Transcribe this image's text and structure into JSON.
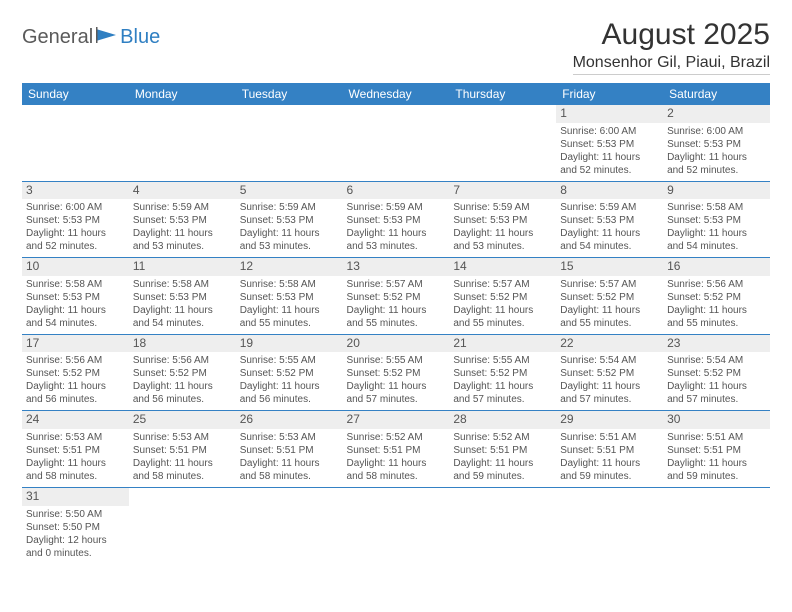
{
  "logo": {
    "text1": "General",
    "text2": "Blue"
  },
  "title": "August 2025",
  "location": "Monsenhor Gil, Piaui, Brazil",
  "colors": {
    "header_bg": "#3481c4",
    "header_fg": "#ffffff",
    "daynum_bg": "#eeeeee",
    "border": "#3481c4",
    "logo_gray": "#5a5a5a",
    "logo_blue": "#2f7fc2"
  },
  "day_headers": [
    "Sunday",
    "Monday",
    "Tuesday",
    "Wednesday",
    "Thursday",
    "Friday",
    "Saturday"
  ],
  "weeks": [
    [
      null,
      null,
      null,
      null,
      null,
      {
        "n": "1",
        "sr": "Sunrise: 6:00 AM",
        "ss": "Sunset: 5:53 PM",
        "d1": "Daylight: 11 hours",
        "d2": "and 52 minutes."
      },
      {
        "n": "2",
        "sr": "Sunrise: 6:00 AM",
        "ss": "Sunset: 5:53 PM",
        "d1": "Daylight: 11 hours",
        "d2": "and 52 minutes."
      }
    ],
    [
      {
        "n": "3",
        "sr": "Sunrise: 6:00 AM",
        "ss": "Sunset: 5:53 PM",
        "d1": "Daylight: 11 hours",
        "d2": "and 52 minutes."
      },
      {
        "n": "4",
        "sr": "Sunrise: 5:59 AM",
        "ss": "Sunset: 5:53 PM",
        "d1": "Daylight: 11 hours",
        "d2": "and 53 minutes."
      },
      {
        "n": "5",
        "sr": "Sunrise: 5:59 AM",
        "ss": "Sunset: 5:53 PM",
        "d1": "Daylight: 11 hours",
        "d2": "and 53 minutes."
      },
      {
        "n": "6",
        "sr": "Sunrise: 5:59 AM",
        "ss": "Sunset: 5:53 PM",
        "d1": "Daylight: 11 hours",
        "d2": "and 53 minutes."
      },
      {
        "n": "7",
        "sr": "Sunrise: 5:59 AM",
        "ss": "Sunset: 5:53 PM",
        "d1": "Daylight: 11 hours",
        "d2": "and 53 minutes."
      },
      {
        "n": "8",
        "sr": "Sunrise: 5:59 AM",
        "ss": "Sunset: 5:53 PM",
        "d1": "Daylight: 11 hours",
        "d2": "and 54 minutes."
      },
      {
        "n": "9",
        "sr": "Sunrise: 5:58 AM",
        "ss": "Sunset: 5:53 PM",
        "d1": "Daylight: 11 hours",
        "d2": "and 54 minutes."
      }
    ],
    [
      {
        "n": "10",
        "sr": "Sunrise: 5:58 AM",
        "ss": "Sunset: 5:53 PM",
        "d1": "Daylight: 11 hours",
        "d2": "and 54 minutes."
      },
      {
        "n": "11",
        "sr": "Sunrise: 5:58 AM",
        "ss": "Sunset: 5:53 PM",
        "d1": "Daylight: 11 hours",
        "d2": "and 54 minutes."
      },
      {
        "n": "12",
        "sr": "Sunrise: 5:58 AM",
        "ss": "Sunset: 5:53 PM",
        "d1": "Daylight: 11 hours",
        "d2": "and 55 minutes."
      },
      {
        "n": "13",
        "sr": "Sunrise: 5:57 AM",
        "ss": "Sunset: 5:52 PM",
        "d1": "Daylight: 11 hours",
        "d2": "and 55 minutes."
      },
      {
        "n": "14",
        "sr": "Sunrise: 5:57 AM",
        "ss": "Sunset: 5:52 PM",
        "d1": "Daylight: 11 hours",
        "d2": "and 55 minutes."
      },
      {
        "n": "15",
        "sr": "Sunrise: 5:57 AM",
        "ss": "Sunset: 5:52 PM",
        "d1": "Daylight: 11 hours",
        "d2": "and 55 minutes."
      },
      {
        "n": "16",
        "sr": "Sunrise: 5:56 AM",
        "ss": "Sunset: 5:52 PM",
        "d1": "Daylight: 11 hours",
        "d2": "and 55 minutes."
      }
    ],
    [
      {
        "n": "17",
        "sr": "Sunrise: 5:56 AM",
        "ss": "Sunset: 5:52 PM",
        "d1": "Daylight: 11 hours",
        "d2": "and 56 minutes."
      },
      {
        "n": "18",
        "sr": "Sunrise: 5:56 AM",
        "ss": "Sunset: 5:52 PM",
        "d1": "Daylight: 11 hours",
        "d2": "and 56 minutes."
      },
      {
        "n": "19",
        "sr": "Sunrise: 5:55 AM",
        "ss": "Sunset: 5:52 PM",
        "d1": "Daylight: 11 hours",
        "d2": "and 56 minutes."
      },
      {
        "n": "20",
        "sr": "Sunrise: 5:55 AM",
        "ss": "Sunset: 5:52 PM",
        "d1": "Daylight: 11 hours",
        "d2": "and 57 minutes."
      },
      {
        "n": "21",
        "sr": "Sunrise: 5:55 AM",
        "ss": "Sunset: 5:52 PM",
        "d1": "Daylight: 11 hours",
        "d2": "and 57 minutes."
      },
      {
        "n": "22",
        "sr": "Sunrise: 5:54 AM",
        "ss": "Sunset: 5:52 PM",
        "d1": "Daylight: 11 hours",
        "d2": "and 57 minutes."
      },
      {
        "n": "23",
        "sr": "Sunrise: 5:54 AM",
        "ss": "Sunset: 5:52 PM",
        "d1": "Daylight: 11 hours",
        "d2": "and 57 minutes."
      }
    ],
    [
      {
        "n": "24",
        "sr": "Sunrise: 5:53 AM",
        "ss": "Sunset: 5:51 PM",
        "d1": "Daylight: 11 hours",
        "d2": "and 58 minutes."
      },
      {
        "n": "25",
        "sr": "Sunrise: 5:53 AM",
        "ss": "Sunset: 5:51 PM",
        "d1": "Daylight: 11 hours",
        "d2": "and 58 minutes."
      },
      {
        "n": "26",
        "sr": "Sunrise: 5:53 AM",
        "ss": "Sunset: 5:51 PM",
        "d1": "Daylight: 11 hours",
        "d2": "and 58 minutes."
      },
      {
        "n": "27",
        "sr": "Sunrise: 5:52 AM",
        "ss": "Sunset: 5:51 PM",
        "d1": "Daylight: 11 hours",
        "d2": "and 58 minutes."
      },
      {
        "n": "28",
        "sr": "Sunrise: 5:52 AM",
        "ss": "Sunset: 5:51 PM",
        "d1": "Daylight: 11 hours",
        "d2": "and 59 minutes."
      },
      {
        "n": "29",
        "sr": "Sunrise: 5:51 AM",
        "ss": "Sunset: 5:51 PM",
        "d1": "Daylight: 11 hours",
        "d2": "and 59 minutes."
      },
      {
        "n": "30",
        "sr": "Sunrise: 5:51 AM",
        "ss": "Sunset: 5:51 PM",
        "d1": "Daylight: 11 hours",
        "d2": "and 59 minutes."
      }
    ],
    [
      {
        "n": "31",
        "sr": "Sunrise: 5:50 AM",
        "ss": "Sunset: 5:50 PM",
        "d1": "Daylight: 12 hours",
        "d2": "and 0 minutes."
      },
      null,
      null,
      null,
      null,
      null,
      null
    ]
  ]
}
